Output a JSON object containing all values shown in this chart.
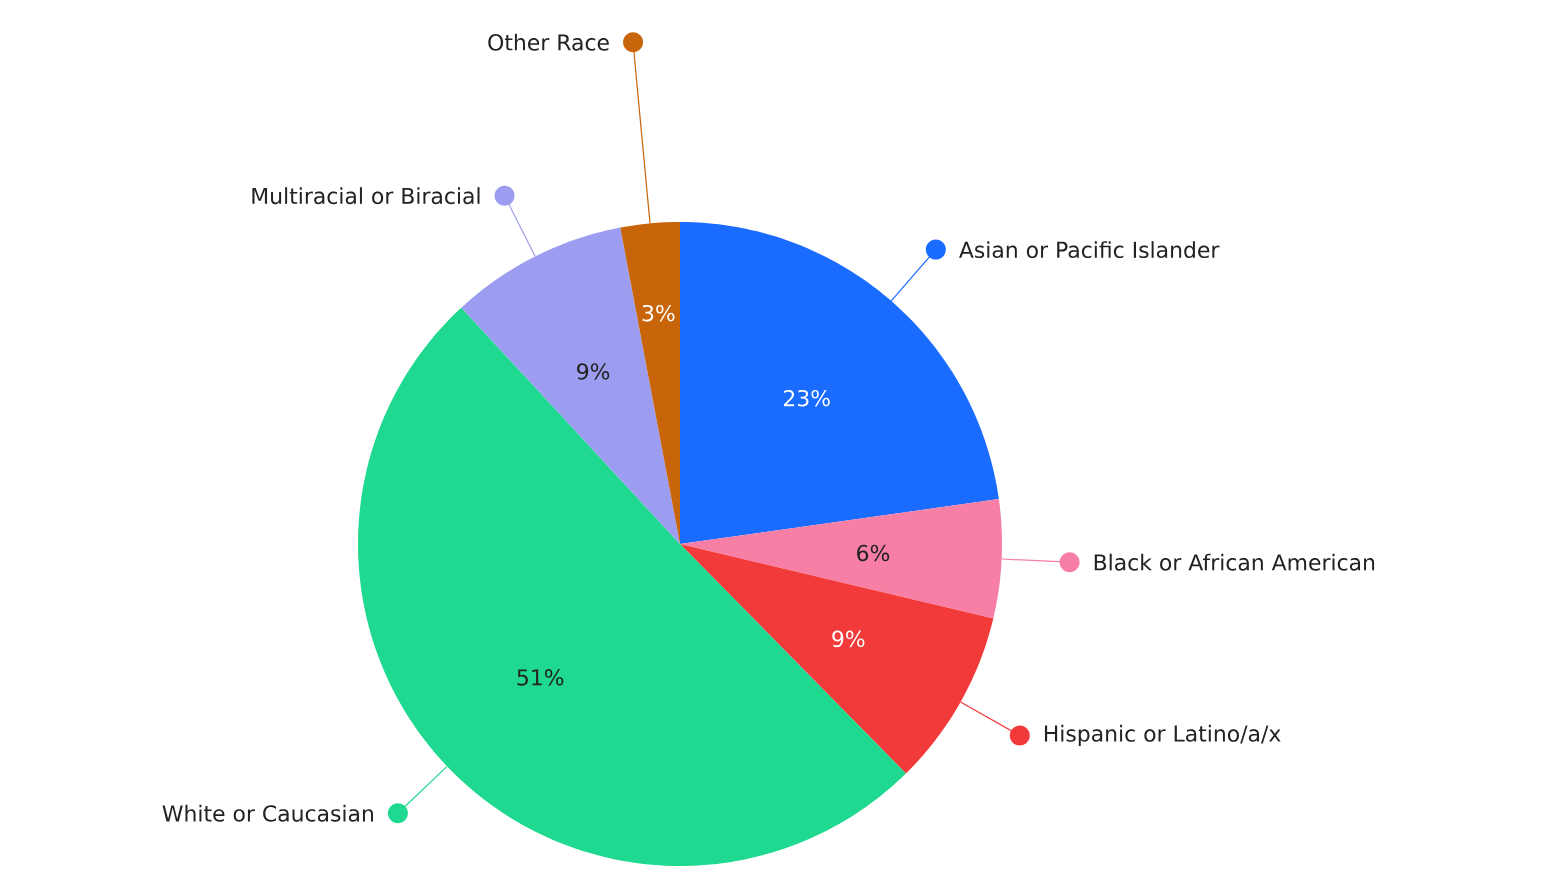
{
  "chart_data": {
    "type": "pie",
    "categories": [
      "Asian or Pacific Islander",
      "Black or African American",
      "Hispanic or Latino/a/x",
      "White or Caucasian",
      "Multiracial or Biracial",
      "Other Race"
    ],
    "values": [
      23,
      6,
      9,
      51,
      9,
      3
    ],
    "value_labels": [
      "23%",
      "6%",
      "9%",
      "51%",
      "9%",
      "3%"
    ],
    "colors": [
      "#1a6bff",
      "#f77fa6",
      "#f23a3a",
      "#1ed98f",
      "#9c9cf0",
      "#c8640a"
    ],
    "legend": "right"
  }
}
